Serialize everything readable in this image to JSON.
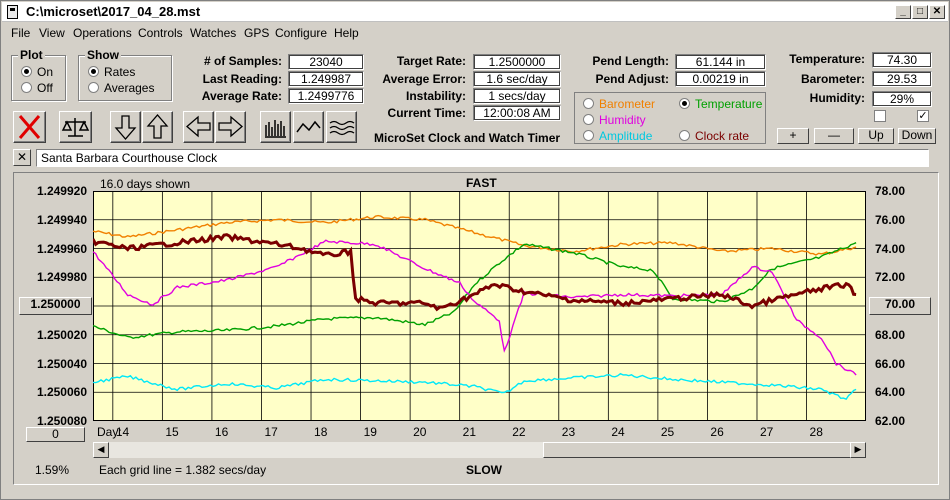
{
  "window": {
    "title": "C:\\microset\\2017_04_28.mst"
  },
  "menu": [
    "File",
    "View",
    "Operations",
    "Controls",
    "Watches",
    "GPS",
    "Configure",
    "Help"
  ],
  "plot_group": {
    "label": "Plot",
    "on": "On",
    "off": "Off",
    "selected": "On"
  },
  "show_group": {
    "label": "Show",
    "rates": "Rates",
    "averages": "Averages",
    "selected": "Rates"
  },
  "stats": {
    "samples_label": "# of Samples:",
    "samples": "23040",
    "last_label": "Last Reading:",
    "last": "1.249987",
    "avg_rate_label": "Average Rate:",
    "avg_rate": "1.2499776",
    "target_label": "Target Rate:",
    "target": "1.2500000",
    "avg_error_label": "Average Error:",
    "avg_error": "1.6 sec/day",
    "instability_label": "Instability:",
    "instability": "1 secs/day",
    "time_label": "Current Time:",
    "time": "12:00:08 AM",
    "pend_len_label": "Pend Length:",
    "pend_len": "61.144 in",
    "pend_adj_label": "Pend Adjust:",
    "pend_adj": "0.00219 in"
  },
  "env": {
    "temp_label": "Temperature:",
    "temp": "74.30",
    "baro_label": "Barometer:",
    "baro": "29.53",
    "hum_label": "Humidity:",
    "hum": "29%"
  },
  "series_select": {
    "barometer": "Barometer",
    "temperature": "Temperature",
    "humidity": "Humidity",
    "amplitude": "Amplitude",
    "clock_rate": "Clock rate",
    "selected": "Temperature"
  },
  "colors": {
    "barometer": "#f08000",
    "temperature": "#00a000",
    "humidity": "#e000e0",
    "amplitude": "#00e8f8",
    "clock_rate": "#7a0000",
    "plot_bg": "#ffffc8"
  },
  "app_title": "MicroSet Clock and Watch Timer",
  "buttons": {
    "plus": "+",
    "minus": "—",
    "up": "Up",
    "down": "Down",
    "close_x": "✕"
  },
  "clock_name": "Santa Barbara Courthouse Clock",
  "chart_header": {
    "days_shown": "16.0 days shown",
    "top": "FAST",
    "bottom": "SLOW",
    "grid_note": "Each grid line = 1.382 secs/day",
    "pct": "1.59%",
    "day_label": "Day:",
    "left_btn": "0",
    "center_value": "1.250000",
    "right_center": "70.00"
  },
  "chart_data": {
    "type": "line",
    "xlabel": "Day:",
    "x_ticks": [
      14,
      15,
      16,
      17,
      18,
      19,
      20,
      21,
      22,
      23,
      24,
      25,
      26,
      27,
      28
    ],
    "xlim": [
      13.3,
      28.9
    ],
    "left_axis": {
      "ticks": [
        "1.249920",
        "1.249940",
        "1.249960",
        "1.249980",
        "1.250000",
        "1.250020",
        "1.250040",
        "1.250060",
        "1.250080"
      ],
      "ylim": [
        1.24992,
        1.25008
      ],
      "inverted": true
    },
    "right_axis": {
      "ticks": [
        "78.00",
        "76.00",
        "74.00",
        "72.00",
        "70.00",
        "68.00",
        "66.00",
        "64.00",
        "62.00"
      ],
      "ylim": [
        62,
        78
      ]
    },
    "series": [
      {
        "name": "Barometer",
        "color": "#f08000",
        "axis": "right",
        "points": [
          [
            13.3,
            75.2
          ],
          [
            14,
            74.8
          ],
          [
            15,
            75.3
          ],
          [
            16,
            75.8
          ],
          [
            17,
            76.0
          ],
          [
            18,
            75.8
          ],
          [
            19,
            76.2
          ],
          [
            20,
            76.0
          ],
          [
            21,
            75.1
          ],
          [
            22,
            74.2
          ],
          [
            23,
            73.8
          ],
          [
            24,
            74.3
          ],
          [
            25,
            74.4
          ],
          [
            26,
            73.8
          ],
          [
            27,
            74.0
          ],
          [
            28,
            73.6
          ],
          [
            28.7,
            74.1
          ]
        ]
      },
      {
        "name": "Temperature",
        "color": "#00a000",
        "axis": "right",
        "points": [
          [
            13.3,
            68.6
          ],
          [
            14,
            67.8
          ],
          [
            15,
            68.2
          ],
          [
            16,
            68.3
          ],
          [
            17,
            68.6
          ],
          [
            18,
            69.1
          ],
          [
            19,
            69.2
          ],
          [
            20,
            68.7
          ],
          [
            20.6,
            69.6
          ],
          [
            21,
            71.5
          ],
          [
            21.5,
            73.0
          ],
          [
            22,
            74.3
          ],
          [
            23,
            73.7
          ],
          [
            24,
            72.7
          ],
          [
            24.6,
            72.5
          ],
          [
            25,
            70.5
          ],
          [
            26,
            70.3
          ],
          [
            26.6,
            71.2
          ],
          [
            27,
            72.6
          ],
          [
            28,
            73.4
          ],
          [
            28.7,
            74.4
          ]
        ]
      },
      {
        "name": "Humidity",
        "color": "#e000e0",
        "axis": "right",
        "points": [
          [
            13.3,
            73.8
          ],
          [
            14,
            70.8
          ],
          [
            14.5,
            70.1
          ],
          [
            15,
            71.3
          ],
          [
            16,
            71.8
          ],
          [
            17,
            72.7
          ],
          [
            18,
            74.5
          ],
          [
            19,
            74.3
          ],
          [
            20,
            72.6
          ],
          [
            20.7,
            71.6
          ],
          [
            21,
            70.3
          ],
          [
            21.5,
            69.0
          ],
          [
            21.6,
            66.8
          ],
          [
            22,
            70.9
          ],
          [
            23,
            70.6
          ],
          [
            24,
            70.8
          ],
          [
            25,
            70.7
          ],
          [
            26,
            70.8
          ],
          [
            26.6,
            72.7
          ],
          [
            27,
            72.4
          ],
          [
            27.5,
            69.0
          ],
          [
            28,
            67.8
          ],
          [
            28.3,
            66.0
          ],
          [
            28.7,
            65.2
          ]
        ]
      },
      {
        "name": "Amplitude",
        "color": "#00e8f8",
        "axis": "right",
        "points": [
          [
            13.3,
            64.7
          ],
          [
            14,
            65.1
          ],
          [
            15,
            64.2
          ],
          [
            16,
            64.6
          ],
          [
            17,
            64.3
          ],
          [
            18,
            64.9
          ],
          [
            19,
            64.8
          ],
          [
            20,
            64.7
          ],
          [
            21,
            64.4
          ],
          [
            21.6,
            63.9
          ],
          [
            22,
            64.8
          ],
          [
            23,
            65.0
          ],
          [
            24,
            65.2
          ],
          [
            25,
            64.9
          ],
          [
            26,
            64.7
          ],
          [
            27,
            64.5
          ],
          [
            28,
            64.2
          ],
          [
            28.5,
            63.5
          ],
          [
            28.7,
            64.2
          ]
        ]
      },
      {
        "name": "Clock rate",
        "color": "#7a0000",
        "axis": "left",
        "width": 3,
        "points": [
          [
            13.3,
            1.249955
          ],
          [
            14,
            1.24996
          ],
          [
            14.5,
            1.249958
          ],
          [
            15,
            1.249956
          ],
          [
            16,
            1.249952
          ],
          [
            17,
            1.249957
          ],
          [
            17.5,
            1.24996
          ],
          [
            18,
            1.249965
          ],
          [
            18.5,
            1.249962
          ],
          [
            18.6,
            1.249995
          ],
          [
            19,
            1.249998
          ],
          [
            20,
            1.249998
          ],
          [
            20.3,
            1.250002
          ],
          [
            21,
            1.249992
          ],
          [
            21.4,
            1.249985
          ],
          [
            22,
            1.24999
          ],
          [
            23,
            1.249996
          ],
          [
            24,
            1.249998
          ],
          [
            25,
            1.249995
          ],
          [
            26,
            1.249992
          ],
          [
            26.6,
            1.25
          ],
          [
            27,
            1.249996
          ],
          [
            28,
            1.249988
          ],
          [
            28.5,
            1.249985
          ],
          [
            28.7,
            1.249992
          ]
        ]
      }
    ]
  }
}
